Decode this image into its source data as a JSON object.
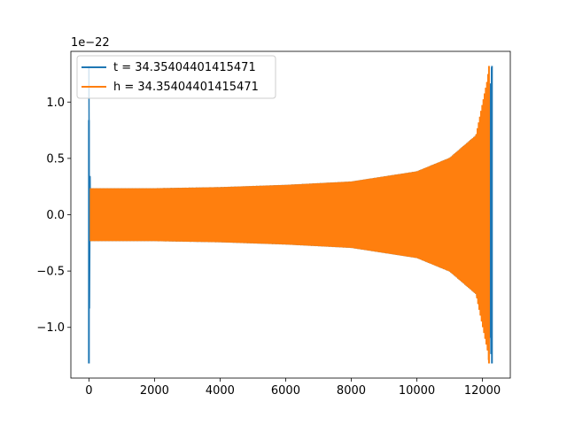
{
  "chart_data": {
    "type": "line",
    "title": "",
    "xlabel": "",
    "ylabel": "",
    "y_offset_text": "1e−22",
    "xlim": [
      -550,
      12850
    ],
    "ylim": [
      -1.45,
      1.45
    ],
    "y_scale_factor": 1e-22,
    "x_ticks": [
      0,
      2000,
      4000,
      6000,
      8000,
      10000,
      12000
    ],
    "x_tick_labels": [
      "0",
      "2000",
      "4000",
      "6000",
      "8000",
      "10000",
      "12000"
    ],
    "y_ticks": [
      -1.0,
      -0.5,
      0.0,
      0.5,
      1.0
    ],
    "y_tick_labels": [
      "−1.0",
      "−0.5",
      "0.0",
      "0.5",
      "1.0"
    ],
    "grid": false,
    "legend_position": "upper-left",
    "series": [
      {
        "name": "t = 34.35404401415471",
        "color": "#1f77b4",
        "description": "oscillating chirp waveform, amplitude in units of 1e-22",
        "start_x": 0,
        "end_x": 12290,
        "envelope": [
          {
            "x": 0,
            "amp": 1.32
          },
          {
            "x": 40,
            "amp": 0.23
          },
          {
            "x": 2000,
            "amp": 0.23
          },
          {
            "x": 4000,
            "amp": 0.24
          },
          {
            "x": 6000,
            "amp": 0.26
          },
          {
            "x": 8000,
            "amp": 0.29
          },
          {
            "x": 10000,
            "amp": 0.38
          },
          {
            "x": 11000,
            "amp": 0.5
          },
          {
            "x": 11800,
            "amp": 0.7
          },
          {
            "x": 12200,
            "amp": 1.0
          },
          {
            "x": 12280,
            "amp": 1.32
          }
        ]
      },
      {
        "name": "h = 34.35404401415471",
        "color": "#ff7f0e",
        "description": "oscillating chirp waveform, amplitude in units of 1e-22",
        "start_x": 0,
        "end_x": 12200,
        "envelope": [
          {
            "x": 0,
            "amp": 0.23
          },
          {
            "x": 2000,
            "amp": 0.23
          },
          {
            "x": 4000,
            "amp": 0.24
          },
          {
            "x": 6000,
            "amp": 0.26
          },
          {
            "x": 8000,
            "amp": 0.29
          },
          {
            "x": 10000,
            "amp": 0.38
          },
          {
            "x": 11000,
            "amp": 0.5
          },
          {
            "x": 11800,
            "amp": 0.7
          },
          {
            "x": 12150,
            "amp": 1.2
          },
          {
            "x": 12200,
            "amp": 1.32
          }
        ]
      }
    ]
  }
}
